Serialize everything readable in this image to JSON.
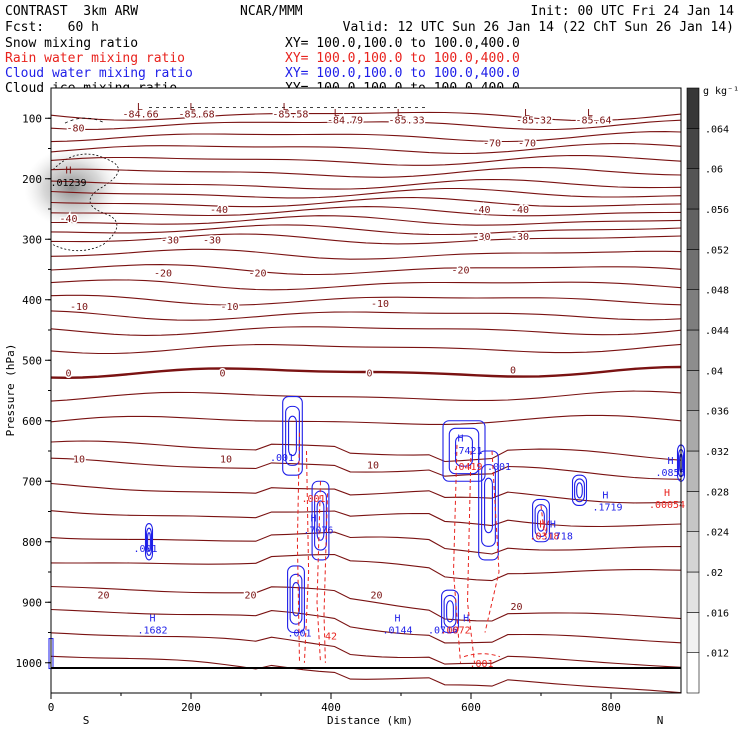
{
  "header": {
    "left_line1": "CONTRAST  3km ARW",
    "left_line2": "Fcst:   60 h",
    "center_line1": "NCAR/MMM",
    "right_line1": "Init: 00 UTC Fri 24 Jan 14",
    "right_line2": "Valid: 12 UTC Sun 26 Jan 14 (22 ChT Sun 26 Jan 14)"
  },
  "fields": [
    {
      "name": "Snow mixing ratio",
      "xy": "XY= 100.0,100.0 to 100.0,400.0",
      "color": "#000000"
    },
    {
      "name": "Rain water mixing ratio",
      "xy": "XY= 100.0,100.0 to 100.0,400.0",
      "color": "#e8231e"
    },
    {
      "name": "Cloud water mixing ratio",
      "xy": "XY= 100.0,100.0 to 100.0,400.0",
      "color": "#1e1ee8"
    },
    {
      "name": "Cloud ice mixing ratio",
      "xy": "XY= 100.0,100.0 to 100.0,400.0",
      "color": "#000000"
    }
  ],
  "colors": {
    "temperature": "#7a1212",
    "rain": "#e8231e",
    "cloud": "#1e1ee8",
    "frame": "#000000"
  },
  "chart_data": {
    "type": "contour",
    "xlabel": "Distance (km)",
    "ylabel": "Pressure (hPa)",
    "xlim": [
      0,
      900
    ],
    "ylim": [
      1050,
      50
    ],
    "yscale": "linear",
    "x_ticks": [
      0,
      200,
      400,
      600,
      800
    ],
    "y_ticks": [
      100,
      200,
      300,
      400,
      500,
      600,
      700,
      800,
      900,
      1000
    ],
    "x_end_labels": {
      "left": "S",
      "right": "N"
    },
    "colorbar": {
      "unit": "g kg⁻¹",
      "ticks": [
        ".012",
        ".016",
        ".02",
        ".024",
        ".028",
        ".032",
        ".036",
        ".04",
        ".044",
        ".048",
        ".052",
        ".056",
        ".06",
        ".064"
      ]
    },
    "temperature_labels": [
      {
        "x": 35,
        "p": 115,
        "text": "-80"
      },
      {
        "x": 128,
        "p": 92,
        "text": "-84.66"
      },
      {
        "x": 208,
        "p": 92,
        "text": "-85.68"
      },
      {
        "x": 342,
        "p": 92,
        "text": "-85.58"
      },
      {
        "x": 420,
        "p": 102,
        "text": "-84.79"
      },
      {
        "x": 508,
        "p": 102,
        "text": "-85.33"
      },
      {
        "x": 690,
        "p": 102,
        "text": "-85.32"
      },
      {
        "x": 775,
        "p": 102,
        "text": "-85.64"
      },
      {
        "x": 630,
        "p": 140,
        "text": "-70"
      },
      {
        "x": 680,
        "p": 140,
        "text": "-70"
      },
      {
        "x": 25,
        "p": 265,
        "text": "-40"
      },
      {
        "x": 240,
        "p": 250,
        "text": "-40"
      },
      {
        "x": 615,
        "p": 250,
        "text": "-40"
      },
      {
        "x": 670,
        "p": 250,
        "text": "-40"
      },
      {
        "x": 170,
        "p": 300,
        "text": "-30"
      },
      {
        "x": 230,
        "p": 300,
        "text": "-30"
      },
      {
        "x": 615,
        "p": 295,
        "text": "-30"
      },
      {
        "x": 670,
        "p": 295,
        "text": "-30"
      },
      {
        "x": 160,
        "p": 355,
        "text": "-20"
      },
      {
        "x": 295,
        "p": 355,
        "text": "-20"
      },
      {
        "x": 585,
        "p": 350,
        "text": "-20"
      },
      {
        "x": 40,
        "p": 410,
        "text": "-10"
      },
      {
        "x": 255,
        "p": 410,
        "text": "-10"
      },
      {
        "x": 470,
        "p": 405,
        "text": "-10"
      },
      {
        "x": 25,
        "p": 520,
        "text": "0"
      },
      {
        "x": 245,
        "p": 520,
        "text": "0"
      },
      {
        "x": 455,
        "p": 520,
        "text": "0"
      },
      {
        "x": 660,
        "p": 515,
        "text": "0"
      },
      {
        "x": 40,
        "p": 662,
        "text": "10"
      },
      {
        "x": 250,
        "p": 662,
        "text": "10"
      },
      {
        "x": 460,
        "p": 672,
        "text": "10"
      },
      {
        "x": 75,
        "p": 887,
        "text": "20"
      },
      {
        "x": 285,
        "p": 887,
        "text": "20"
      },
      {
        "x": 465,
        "p": 887,
        "text": "20"
      },
      {
        "x": 665,
        "p": 906,
        "text": "20"
      }
    ],
    "extrema_labels": [
      {
        "x": 25,
        "p": 185,
        "text": "H",
        "color": "temperature"
      },
      {
        "x": 25,
        "p": 205,
        "text": ".01239",
        "color": "snow"
      },
      {
        "x": 127,
        "p": 80,
        "text": "L",
        "color": "temperature"
      },
      {
        "x": 202,
        "p": 80,
        "text": "L",
        "color": "temperature"
      },
      {
        "x": 335,
        "p": 80,
        "text": "L",
        "color": "temperature"
      },
      {
        "x": 408,
        "p": 90,
        "text": "L",
        "color": "temperature"
      },
      {
        "x": 498,
        "p": 90,
        "text": "L",
        "color": "temperature"
      },
      {
        "x": 680,
        "p": 90,
        "text": "L",
        "color": "temperature"
      },
      {
        "x": 770,
        "p": 90,
        "text": "L",
        "color": "temperature"
      },
      {
        "x": 330,
        "p": 660,
        "text": ".001",
        "color": "cloud"
      },
      {
        "x": 375,
        "p": 728,
        "text": ".001",
        "color": "rain"
      },
      {
        "x": 375,
        "p": 760,
        "text": "H",
        "color": "cloud"
      },
      {
        "x": 382,
        "p": 780,
        "text": ".7076",
        "color": "cloud"
      },
      {
        "x": 400,
        "p": 955,
        "text": "42",
        "color": "rain"
      },
      {
        "x": 355,
        "p": 950,
        "text": ".001",
        "color": "cloud"
      },
      {
        "x": 135,
        "p": 810,
        "text": ".001",
        "color": "cloud"
      },
      {
        "x": 145,
        "p": 925,
        "text": "H",
        "color": "cloud"
      },
      {
        "x": 145,
        "p": 945,
        "text": ".1682",
        "color": "cloud"
      },
      {
        "x": 495,
        "p": 925,
        "text": "H",
        "color": "cloud"
      },
      {
        "x": 495,
        "p": 945,
        "text": ".0144",
        "color": "cloud"
      },
      {
        "x": 593,
        "p": 925,
        "text": "H",
        "color": "cloud"
      },
      {
        "x": 560,
        "p": 945,
        "text": ".0716",
        "color": "cloud"
      },
      {
        "x": 578,
        "p": 945,
        "text": ".0072",
        "color": "rain"
      },
      {
        "x": 615,
        "p": 1000,
        "text": ".001",
        "color": "rain"
      },
      {
        "x": 585,
        "p": 628,
        "text": "H",
        "color": "cloud"
      },
      {
        "x": 595,
        "p": 648,
        "text": ".7421",
        "color": "cloud"
      },
      {
        "x": 595,
        "p": 675,
        "text": ".0419",
        "color": "rain"
      },
      {
        "x": 640,
        "p": 675,
        "text": ".001",
        "color": "cloud"
      },
      {
        "x": 702,
        "p": 770,
        "text": "H",
        "color": "rain"
      },
      {
        "x": 717,
        "p": 770,
        "text": "H",
        "color": "cloud"
      },
      {
        "x": 705,
        "p": 790,
        "text": ".0318",
        "color": "rain"
      },
      {
        "x": 724,
        "p": 790,
        "text": ".1718",
        "color": "cloud"
      },
      {
        "x": 792,
        "p": 722,
        "text": "H",
        "color": "cloud"
      },
      {
        "x": 795,
        "p": 742,
        "text": ".1719",
        "color": "cloud"
      },
      {
        "x": 885,
        "p": 665,
        "text": "H",
        "color": "cloud"
      },
      {
        "x": 885,
        "p": 685,
        "text": ".0855",
        "color": "cloud"
      },
      {
        "x": 880,
        "p": 718,
        "text": "H",
        "color": "rain"
      },
      {
        "x": 880,
        "p": 738,
        "text": ".00054",
        "color": "rain"
      }
    ]
  }
}
